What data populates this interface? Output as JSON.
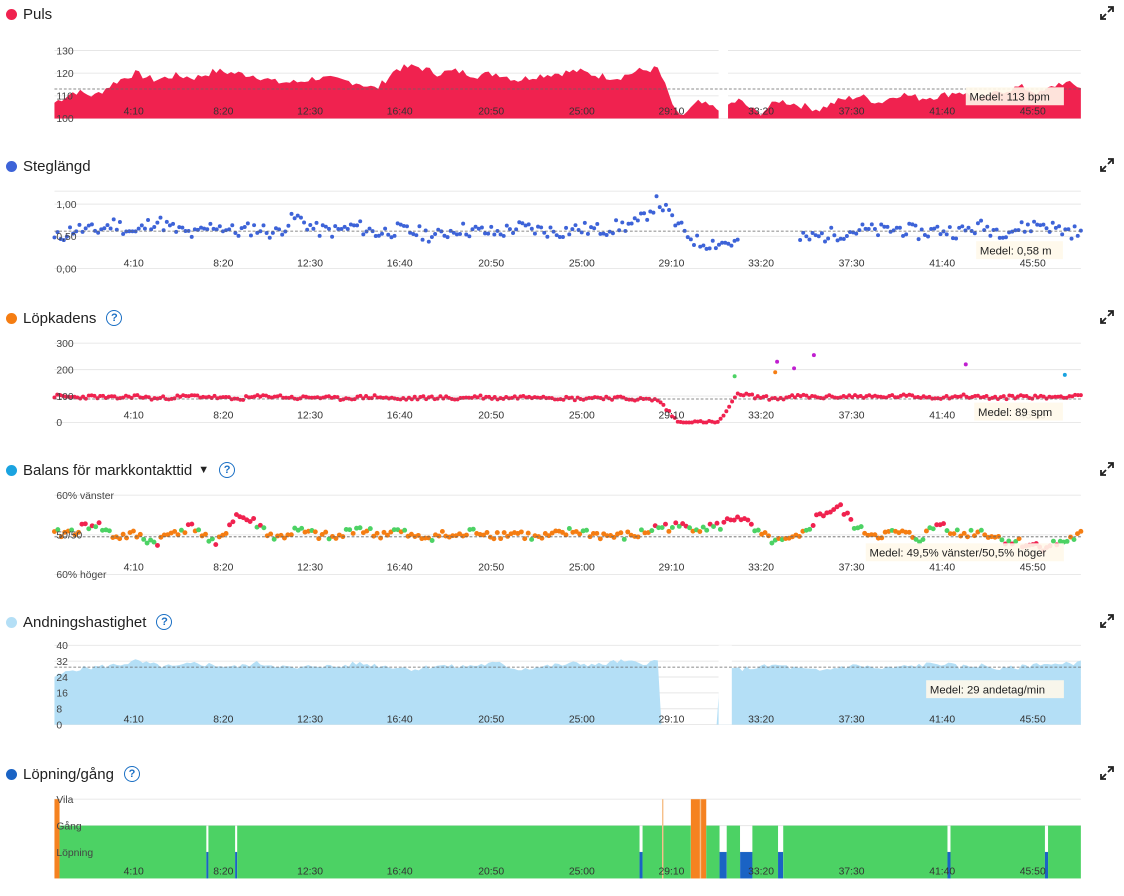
{
  "x_ticks": [
    "4:10",
    "8:20",
    "12:30",
    "16:40",
    "20:50",
    "25:00",
    "29:10",
    "33:20",
    "37:30",
    "41:40",
    "45:50"
  ],
  "colors": {
    "puls": "#f0224f",
    "steg": "#3d63d8",
    "kadens": "#f57d12",
    "balans": "#1aa3e0",
    "andning": "#b4dff6",
    "lopning": "#1a63c4",
    "walk": "#4cd264",
    "rest": "#f58220"
  },
  "chart_data": [
    {
      "type": "area",
      "title": "Puls",
      "y_ticks": [
        "130",
        "120",
        "110",
        "100"
      ],
      "ylim": [
        100,
        135
      ],
      "x_ticks": [
        "4:10",
        "8:20",
        "12:30",
        "16:40",
        "20:50",
        "25:00",
        "29:10",
        "33:20",
        "37:30",
        "41:40",
        "45:50"
      ],
      "series": [
        {
          "values": [
            107,
            112,
            110,
            116,
            120,
            117,
            119,
            118,
            121,
            120,
            119,
            116,
            116,
            118,
            117,
            116,
            113,
            122,
            123,
            120,
            121,
            119,
            120,
            117,
            119,
            120,
            121,
            119,
            118,
            121,
            122,
            100,
            107,
            104,
            108,
            102,
            108,
            106,
            104,
            108,
            110,
            107,
            111,
            109,
            110,
            112,
            108,
            112,
            114,
            111,
            116,
            114
          ]
        }
      ],
      "average_label": "Medel: 113 bpm",
      "average": 113
    },
    {
      "type": "scatter",
      "title": "Steglängd",
      "y_ticks": [
        "1,00",
        "0,50",
        "0,00"
      ],
      "ylim": [
        0,
        1.2
      ],
      "x_ticks": [
        "4:10",
        "8:20",
        "12:30",
        "16:40",
        "20:50",
        "25:00",
        "29:10",
        "33:20",
        "37:30",
        "41:40",
        "45:50"
      ],
      "series": [
        {
          "values": [
            0.45,
            0.62,
            0.58,
            0.7,
            0.55,
            0.75,
            0.6,
            0.52,
            0.68,
            0.57,
            0.63,
            0.55,
            0.8,
            0.6,
            0.58,
            0.66,
            0.55,
            0.6,
            0.56,
            0.5,
            0.62,
            0.58,
            0.55,
            0.64,
            0.6,
            0.57,
            0.62,
            0.6,
            0.65,
            0.7,
            1.05,
            0.65,
            0.4,
            0.4,
            0.4,
            null,
            null,
            0.45,
            0.5,
            0.55,
            0.6,
            0.58,
            0.62,
            0.55,
            0.6,
            0.57,
            0.65,
            0.58,
            0.62,
            0.7,
            0.6,
            0.55
          ]
        }
      ],
      "average_label": "Medel: 0,58 m",
      "average": 0.58
    },
    {
      "type": "scatter",
      "title": "Löpkadens",
      "y_ticks": [
        "300",
        "200",
        "100",
        "0"
      ],
      "ylim": [
        0,
        300
      ],
      "x_ticks": [
        "4:10",
        "8:20",
        "12:30",
        "16:40",
        "20:50",
        "25:00",
        "29:10",
        "33:20",
        "37:30",
        "41:40",
        "45:50"
      ],
      "series": [
        {
          "values": [
            100,
            95,
            98,
            92,
            100,
            90,
            96,
            100,
            95,
            88,
            97,
            100,
            92,
            96,
            90,
            94,
            98,
            88,
            92,
            95,
            90,
            98,
            92,
            96,
            100,
            93,
            90,
            95,
            92,
            88,
            85,
            0,
            0,
            0,
            110,
            95,
            90,
            100,
            95,
            98,
            100,
            96,
            100,
            98,
            95,
            100,
            97,
            92,
            100,
            95,
            98,
            105
          ]
        }
      ],
      "average_label": "Medel: 89 spm",
      "average": 89
    },
    {
      "type": "scatter",
      "title": "Balans för markkontakttid",
      "y_ticks": [
        "60% vänster",
        "50/50",
        "60% höger"
      ],
      "ylim": [
        40,
        60
      ],
      "x_ticks": [
        "4:10",
        "8:20",
        "12:30",
        "16:40",
        "20:50",
        "25:00",
        "29:10",
        "33:20",
        "37:30",
        "41:40",
        "45:50"
      ],
      "series": [
        {
          "values": [
            50,
            51,
            53,
            49.5,
            50,
            48,
            51,
            52,
            47,
            55,
            53,
            49,
            51,
            50,
            49,
            52,
            50,
            51,
            49,
            50,
            49.5,
            51,
            50,
            50.5,
            49,
            50,
            51,
            50,
            49.5,
            50,
            52,
            52,
            52,
            52,
            55,
            50,
            48,
            49,
            55,
            57,
            51,
            50,
            50.5,
            49,
            53,
            50,
            51,
            49,
            48,
            47,
            48,
            50
          ]
        }
      ],
      "average_label": "Medel: 49,5% vänster/50,5% höger",
      "average": 49.5
    },
    {
      "type": "area",
      "title": "Andningshastighet",
      "y_ticks": [
        "40",
        "32",
        "24",
        "16",
        "8",
        "0"
      ],
      "ylim": [
        0,
        40
      ],
      "x_ticks": [
        "4:10",
        "8:20",
        "12:30",
        "16:40",
        "20:50",
        "25:00",
        "29:10",
        "33:20",
        "37:30",
        "41:40",
        "45:50"
      ],
      "series": [
        {
          "values": [
            24,
            28,
            29,
            30,
            32,
            30,
            29,
            31,
            30,
            29,
            31,
            30,
            28,
            30,
            29,
            31,
            30,
            29,
            28,
            30,
            29,
            30,
            31,
            28,
            29,
            30,
            31,
            30,
            32,
            31,
            32,
            null,
            null,
            26,
            28,
            29,
            30,
            28,
            27,
            29,
            30,
            28,
            29,
            30,
            31,
            29,
            30,
            28,
            29,
            31,
            30,
            32
          ]
        }
      ],
      "average_label": "Medel: 29 andetag/min",
      "average": 29
    },
    {
      "type": "area",
      "title": "Löpning/gång",
      "y_ticks": [
        "Vila",
        "Gång",
        "Löpning"
      ],
      "x_ticks": [
        "4:10",
        "8:20",
        "12:30",
        "16:40",
        "20:50",
        "25:00",
        "29:10",
        "33:20",
        "37:30",
        "41:40",
        "45:50"
      ],
      "segments": [
        {
          "from": 0,
          "to": 0.5,
          "state": "Vila"
        },
        {
          "from": 0.5,
          "to": 14.8,
          "state": "Gång"
        },
        {
          "from": 14.8,
          "to": 15,
          "state": "Löpning"
        },
        {
          "from": 15,
          "to": 17.6,
          "state": "Gång"
        },
        {
          "from": 17.6,
          "to": 17.8,
          "state": "Löpning"
        },
        {
          "from": 17.8,
          "to": 57,
          "state": "Gång"
        },
        {
          "from": 57,
          "to": 57.3,
          "state": "Löpning"
        },
        {
          "from": 57.3,
          "to": 62,
          "state": "Gång"
        },
        {
          "from": 62,
          "to": 63.5,
          "state": "Vila"
        },
        {
          "from": 63.5,
          "to": 64.8,
          "state": "Gång"
        },
        {
          "from": 64.8,
          "to": 65.5,
          "state": "Löpning"
        },
        {
          "from": 65.5,
          "to": 66.8,
          "state": "Gång"
        },
        {
          "from": 66.8,
          "to": 68,
          "state": "Löpning"
        },
        {
          "from": 68,
          "to": 70.5,
          "state": "Gång"
        },
        {
          "from": 70.5,
          "to": 71,
          "state": "Löpning"
        },
        {
          "from": 71,
          "to": 87,
          "state": "Gång"
        },
        {
          "from": 87,
          "to": 87.3,
          "state": "Löpning"
        },
        {
          "from": 87.3,
          "to": 96.5,
          "state": "Gång"
        },
        {
          "from": 96.5,
          "to": 96.8,
          "state": "Löpning"
        },
        {
          "from": 96.8,
          "to": 100,
          "state": "Gång"
        }
      ]
    }
  ]
}
